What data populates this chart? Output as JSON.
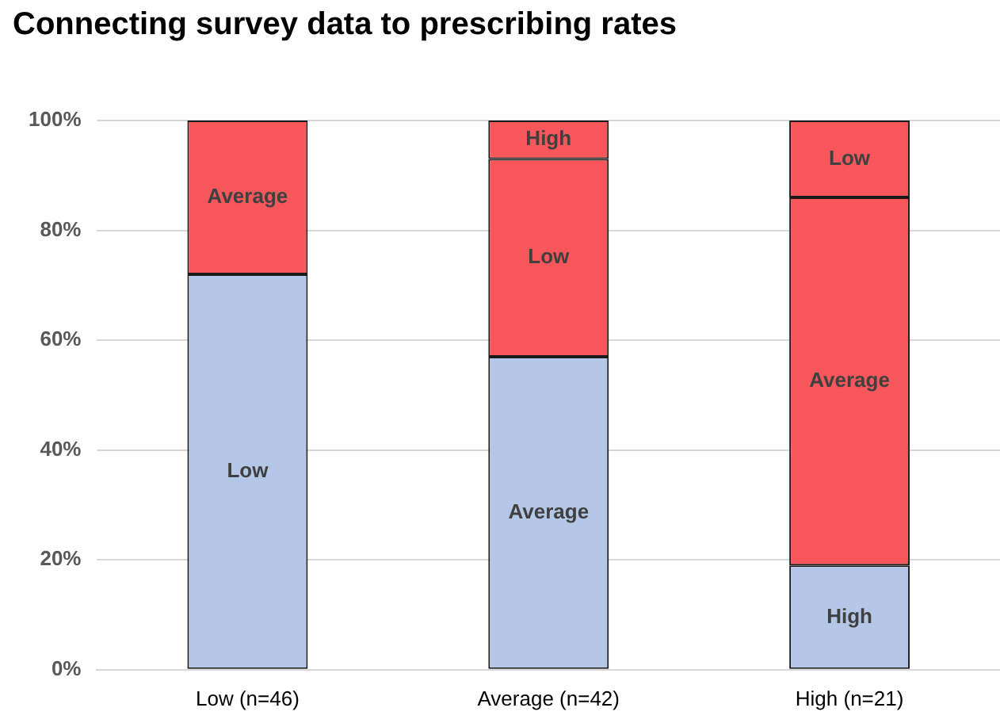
{
  "chart_data": {
    "type": "bar",
    "title": "Connecting survey data to prescribing rates",
    "categories": [
      "Low (n=46)",
      "Average (n=42)",
      "High (n=21)"
    ],
    "stacked": true,
    "grid": "y",
    "ylim": [
      0,
      100
    ],
    "yticks": [
      {
        "value": 0,
        "label": "0%"
      },
      {
        "value": 20,
        "label": "20%"
      },
      {
        "value": 40,
        "label": "40%"
      },
      {
        "value": 60,
        "label": "60%"
      },
      {
        "value": 80,
        "label": "80%"
      },
      {
        "value": 100,
        "label": "100%"
      }
    ],
    "series": [
      {
        "color": "#b4c7e7",
        "values": [
          72,
          57,
          19
        ],
        "value_labels": [
          "Low",
          "Average",
          "High"
        ]
      },
      {
        "color": "#f7575a",
        "values": [
          28,
          36,
          67
        ],
        "value_labels": [
          "Average",
          "Low",
          "Average"
        ]
      },
      {
        "color": "#f7575a",
        "values": [
          null,
          7,
          14
        ],
        "value_labels": [
          null,
          "High",
          "Low"
        ]
      }
    ]
  }
}
